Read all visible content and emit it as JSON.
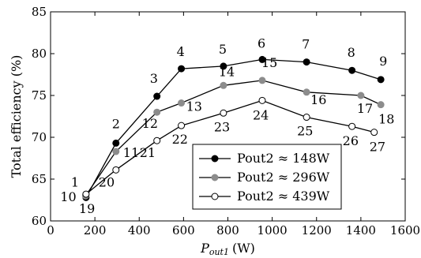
{
  "chart_data": {
    "type": "line",
    "title": "",
    "xlabel_main": "P",
    "xlabel_sub": "out1",
    "xlabel_unit": "(W)",
    "ylabel": "Total efficiency (%)",
    "xlim": [
      0,
      1600
    ],
    "ylim": [
      60,
      85
    ],
    "xticks": [
      0,
      200,
      400,
      600,
      800,
      1000,
      1200,
      1400,
      1600
    ],
    "yticks": [
      60,
      65,
      70,
      75,
      80,
      85
    ],
    "legend_position": "bottom-center",
    "series": [
      {
        "name": "Pout2 ≈ 148W",
        "marker_fill": "#000000",
        "points": [
          {
            "x": 160,
            "y": 62.8,
            "label": "1"
          },
          {
            "x": 295,
            "y": 69.3,
            "label": "2"
          },
          {
            "x": 480,
            "y": 74.9,
            "label": "3"
          },
          {
            "x": 590,
            "y": 78.2,
            "label": "4"
          },
          {
            "x": 780,
            "y": 78.5,
            "label": "5"
          },
          {
            "x": 955,
            "y": 79.3,
            "label": "6"
          },
          {
            "x": 1155,
            "y": 79.0,
            "label": "7"
          },
          {
            "x": 1360,
            "y": 78.0,
            "label": "8"
          },
          {
            "x": 1490,
            "y": 76.9,
            "label": "9"
          }
        ]
      },
      {
        "name": "Pout2 ≈ 296W",
        "marker_fill": "#8c8c8c",
        "points": [
          {
            "x": 158,
            "y": 63.0,
            "label": "10"
          },
          {
            "x": 295,
            "y": 68.3,
            "label": "11"
          },
          {
            "x": 480,
            "y": 73.0,
            "label": "12"
          },
          {
            "x": 590,
            "y": 74.1,
            "label": "13"
          },
          {
            "x": 780,
            "y": 76.2,
            "label": "14"
          },
          {
            "x": 955,
            "y": 76.8,
            "label": "15"
          },
          {
            "x": 1155,
            "y": 75.4,
            "label": "16"
          },
          {
            "x": 1400,
            "y": 75.0,
            "label": "17"
          },
          {
            "x": 1490,
            "y": 73.9,
            "label": "18"
          }
        ]
      },
      {
        "name": "Pout2 ≈ 439W",
        "marker_fill": "#ffffff",
        "points": [
          {
            "x": 160,
            "y": 63.2,
            "label": "19"
          },
          {
            "x": 295,
            "y": 66.1,
            "label": "20"
          },
          {
            "x": 480,
            "y": 69.6,
            "label": "21"
          },
          {
            "x": 590,
            "y": 71.4,
            "label": "22"
          },
          {
            "x": 780,
            "y": 72.9,
            "label": "23"
          },
          {
            "x": 955,
            "y": 74.4,
            "label": "24"
          },
          {
            "x": 1155,
            "y": 72.4,
            "label": "25"
          },
          {
            "x": 1360,
            "y": 71.3,
            "label": "26"
          },
          {
            "x": 1460,
            "y": 70.6,
            "label": "27"
          }
        ]
      }
    ]
  }
}
